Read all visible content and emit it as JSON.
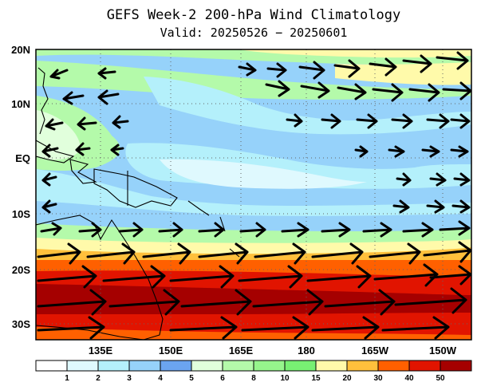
{
  "map": {
    "title": "GEFS Week-2 200-hPa Wind Climatology",
    "subtitle": "Valid: 20250526 − 20250601",
    "lat_labels": [
      "20N",
      "10N",
      "EQ",
      "10S",
      "20S",
      "30S"
    ],
    "lon_labels": [
      "135E",
      "150E",
      "165E",
      "180",
      "165W",
      "150W"
    ],
    "legend": {
      "tick_labels": [
        "1",
        "2",
        "3",
        "4",
        "5",
        "6",
        "8",
        "10",
        "15",
        "20",
        "30",
        "40",
        "50"
      ],
      "colors": [
        "#ffffff",
        "#dff9fe",
        "#b4f0fb",
        "#96d2fa",
        "#6ba4f0",
        "#e1ffdc",
        "#b4faaa",
        "#96f58c",
        "#78f073",
        "#fffaaa",
        "#ffc03c",
        "#ff6000",
        "#e11400",
        "#a50000"
      ]
    },
    "units": "",
    "vector_arrows": "wind vectors"
  }
}
